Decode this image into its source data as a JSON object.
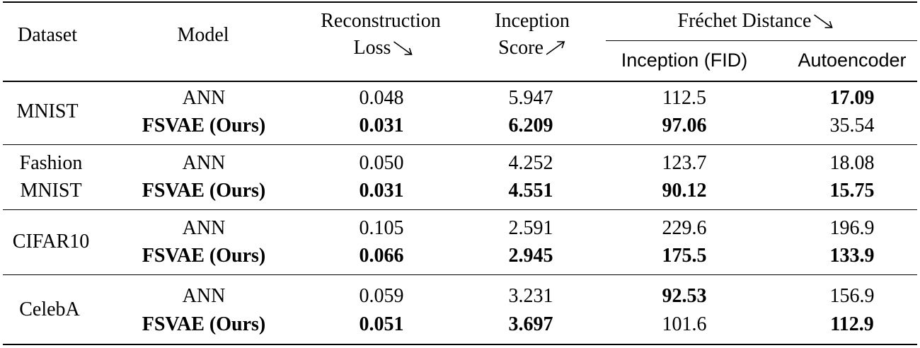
{
  "table": {
    "headers": {
      "dataset": "Dataset",
      "model": "Model",
      "recon_line1": "Reconstruction",
      "recon_line2": "Loss",
      "is_line1": "Inception",
      "is_line2": "Score",
      "fd_group": "Fréchet Distance",
      "fid": "Inception (FID)",
      "ae": "Autoencoder"
    },
    "arrows": {
      "recon": "down-right-arrow",
      "is": "up-right-arrow",
      "fd": "down-right-arrow"
    },
    "groups": [
      {
        "dataset_line1": "MNIST",
        "dataset_line2": "",
        "rows": [
          {
            "model": "ANN",
            "recon": "0.048",
            "is": "5.947",
            "fid": "112.5",
            "ae": "17.09",
            "bold": {
              "model": false,
              "recon": false,
              "is": false,
              "fid": false,
              "ae": true
            }
          },
          {
            "model": "FSVAE (Ours)",
            "recon": "0.031",
            "is": "6.209",
            "fid": "97.06",
            "ae": "35.54",
            "bold": {
              "model": true,
              "recon": true,
              "is": true,
              "fid": true,
              "ae": false
            }
          }
        ]
      },
      {
        "dataset_line1": "Fashion",
        "dataset_line2": "MNIST",
        "rows": [
          {
            "model": "ANN",
            "recon": "0.050",
            "is": "4.252",
            "fid": "123.7",
            "ae": "18.08",
            "bold": {
              "model": false,
              "recon": false,
              "is": false,
              "fid": false,
              "ae": false
            }
          },
          {
            "model": "FSVAE (Ours)",
            "recon": "0.031",
            "is": "4.551",
            "fid": "90.12",
            "ae": "15.75",
            "bold": {
              "model": true,
              "recon": true,
              "is": true,
              "fid": true,
              "ae": true
            }
          }
        ]
      },
      {
        "dataset_line1": "CIFAR10",
        "dataset_line2": "",
        "rows": [
          {
            "model": "ANN",
            "recon": "0.105",
            "is": "2.591",
            "fid": "229.6",
            "ae": "196.9",
            "bold": {
              "model": false,
              "recon": false,
              "is": false,
              "fid": false,
              "ae": false
            }
          },
          {
            "model": "FSVAE (Ours)",
            "recon": "0.066",
            "is": "2.945",
            "fid": "175.5",
            "ae": "133.9",
            "bold": {
              "model": true,
              "recon": true,
              "is": true,
              "fid": true,
              "ae": true
            }
          }
        ]
      },
      {
        "dataset_line1": "CelebA",
        "dataset_line2": "",
        "rows": [
          {
            "model": "ANN",
            "recon": "0.059",
            "is": "3.231",
            "fid": "92.53",
            "ae": "156.9",
            "bold": {
              "model": false,
              "recon": false,
              "is": false,
              "fid": true,
              "ae": false
            }
          },
          {
            "model": "FSVAE (Ours)",
            "recon": "0.051",
            "is": "3.697",
            "fid": "101.6",
            "ae": "112.9",
            "bold": {
              "model": true,
              "recon": true,
              "is": true,
              "fid": false,
              "ae": true
            }
          }
        ]
      }
    ]
  }
}
